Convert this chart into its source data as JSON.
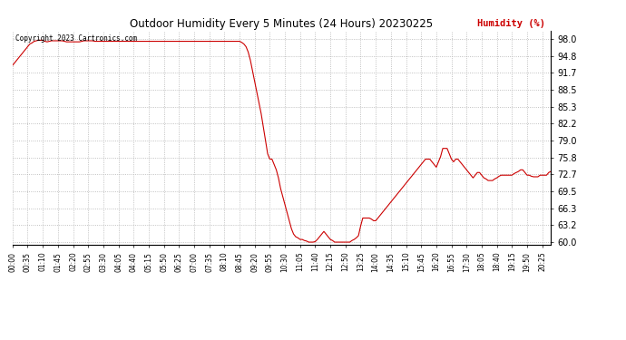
{
  "title": "Outdoor Humidity Every 5 Minutes (24 Hours) 20230225",
  "ylabel": "Humidity (%)",
  "copyright_text": "Copyright 2023 Cartronics.com",
  "line_color": "#cc0000",
  "bg_color": "#ffffff",
  "grid_color": "#b0b0b0",
  "yticks": [
    60.0,
    63.2,
    66.3,
    69.5,
    72.7,
    75.8,
    79.0,
    82.2,
    85.3,
    88.5,
    91.7,
    94.8,
    98.0
  ],
  "ylim": [
    59.5,
    99.5
  ],
  "tick_interval_minutes": 35,
  "humidity_data": [
    93.0,
    93.5,
    94.0,
    94.5,
    95.0,
    95.5,
    96.0,
    96.5,
    97.0,
    97.2,
    97.5,
    97.6,
    97.7,
    97.7,
    97.7,
    97.5,
    97.4,
    97.5,
    97.6,
    97.6,
    97.6,
    97.6,
    97.6,
    97.6,
    97.5,
    97.4,
    97.4,
    97.4,
    97.4,
    97.4,
    97.4,
    97.4,
    97.5,
    97.6,
    97.6,
    97.6,
    97.6,
    97.6,
    97.5,
    97.5,
    97.5,
    97.5,
    97.5,
    97.5,
    97.5,
    97.5,
    97.5,
    97.5,
    97.5,
    97.5,
    97.5,
    97.5,
    97.5,
    97.5,
    97.5,
    97.5,
    97.5,
    97.5,
    97.5,
    97.5,
    97.5,
    97.5,
    97.5,
    97.5,
    97.5,
    97.5,
    97.5,
    97.5,
    97.5,
    97.5,
    97.5,
    97.5,
    97.5,
    97.5,
    97.5,
    97.5,
    97.5,
    97.5,
    97.5,
    97.5,
    97.5,
    97.5,
    97.5,
    97.5,
    97.5,
    97.5,
    97.5,
    97.5,
    97.5,
    97.5,
    97.5,
    97.5,
    97.5,
    97.5,
    97.5,
    97.5,
    97.5,
    97.5,
    97.5,
    97.5,
    97.5,
    97.5,
    97.5,
    97.5,
    97.5,
    97.5,
    97.3,
    97.0,
    96.5,
    95.5,
    94.0,
    92.0,
    90.0,
    88.0,
    86.0,
    84.0,
    81.5,
    79.0,
    76.5,
    75.5,
    75.5,
    74.5,
    73.5,
    72.0,
    70.0,
    68.5,
    67.0,
    65.5,
    64.0,
    62.5,
    61.5,
    61.0,
    60.8,
    60.5,
    60.5,
    60.3,
    60.2,
    60.0,
    60.0,
    60.0,
    60.1,
    60.5,
    61.0,
    61.5,
    62.0,
    61.5,
    61.0,
    60.5,
    60.3,
    60.0,
    60.0,
    60.0,
    60.0,
    60.0,
    60.0,
    60.0,
    60.0,
    60.3,
    60.5,
    60.8,
    61.2,
    63.0,
    64.5,
    64.5,
    64.5,
    64.5,
    64.3,
    64.0,
    64.0,
    64.5,
    65.0,
    65.5,
    66.0,
    66.5,
    67.0,
    67.5,
    68.0,
    68.5,
    69.0,
    69.5,
    70.0,
    70.5,
    71.0,
    71.5,
    72.0,
    72.5,
    73.0,
    73.5,
    74.0,
    74.5,
    75.0,
    75.5,
    75.5,
    75.5,
    75.0,
    74.5,
    74.0,
    75.0,
    76.0,
    77.5,
    77.5,
    77.5,
    76.5,
    75.5,
    75.0,
    75.5,
    75.5,
    75.0,
    74.5,
    74.0,
    73.5,
    73.0,
    72.5,
    72.0,
    72.5,
    73.0,
    73.0,
    72.5,
    72.0,
    71.8,
    71.5,
    71.5,
    71.5,
    71.8,
    72.0,
    72.3,
    72.5,
    72.5,
    72.5,
    72.5,
    72.5,
    72.5,
    72.8,
    73.0,
    73.2,
    73.5,
    73.5,
    73.0,
    72.5,
    72.5,
    72.3,
    72.2,
    72.2,
    72.2,
    72.5,
    72.5,
    72.5,
    72.5,
    73.0,
    73.2
  ]
}
